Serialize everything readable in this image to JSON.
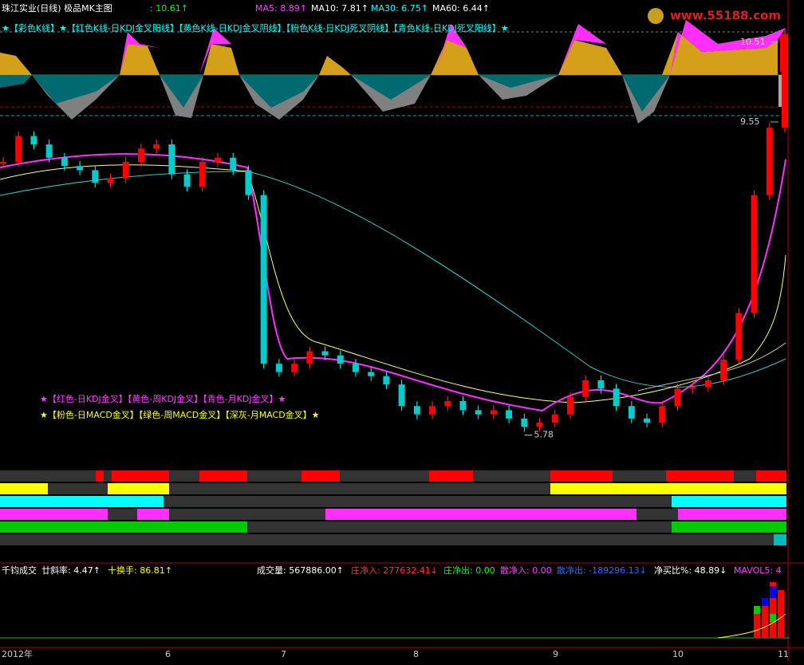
{
  "header": {
    "title": "珠江实业(日线) 极品MK主图",
    "price": ": 10.61↑",
    "ma5": "MA5: 8.89↑",
    "ma10": "MA10: 7.81↑",
    "ma30": "MA30: 6.75↑",
    "ma60": "MA60: 6.44↑",
    "logo": "www.55188.com"
  },
  "banners": {
    "kline": "★【彩色K线】★【红色K线-日KDJ金叉阳线】【黄色K线-日KDJ金叉阴线】【粉色K线-日KDJ死叉阴线】【青色K线-日KDJ死叉阳线】★",
    "kdj": "★【红色-日KDJ金叉】【黄色-周KDJ金叉】【青色-月KDJ金叉】★",
    "macd": "★【粉色-日MACD金叉】【绿色-周MACD金叉】【深灰-月MACD金叉】★"
  },
  "price_chart": {
    "axis_labels": [
      10.51,
      9.55
    ],
    "low_label": 5.78,
    "close": [
      9.07,
      9.38,
      9.28,
      9.12,
      9.02,
      8.97,
      8.82,
      8.87,
      9.07,
      9.23,
      9.28,
      8.92,
      8.77,
      9.07,
      9.12,
      8.97,
      8.67,
      6.64,
      6.54,
      6.64,
      6.79,
      6.74,
      6.64,
      6.54,
      6.49,
      6.39,
      6.13,
      6.03,
      6.13,
      6.19,
      6.08,
      6.03,
      6.08,
      5.98,
      5.88,
      5.93,
      6.03,
      6.24,
      6.44,
      6.34,
      6.13,
      5.98,
      5.93,
      6.13,
      6.34,
      6.36,
      6.44,
      6.69,
      7.25,
      8.67,
      9.48,
      10.61
    ]
  },
  "volume_header": {
    "name": "千钧成交",
    "slope": "廿斜率: 4.47↑",
    "turnover": "十换手: 86.81↑",
    "volume": "成交量: 567886.00↑",
    "main_in": "庄净入: 277632.41↓",
    "main_out": "庄净出: 0.00",
    "retail_in": "散净入: 0.00",
    "retail_out": "散净出: -189296.13↓",
    "ratio": "净买比%: 48.89↓",
    "mavol": "MAVOL5: 4"
  },
  "x_axis": [
    "2012年",
    "6",
    "7",
    "8",
    "9",
    "10",
    "11"
  ]
}
